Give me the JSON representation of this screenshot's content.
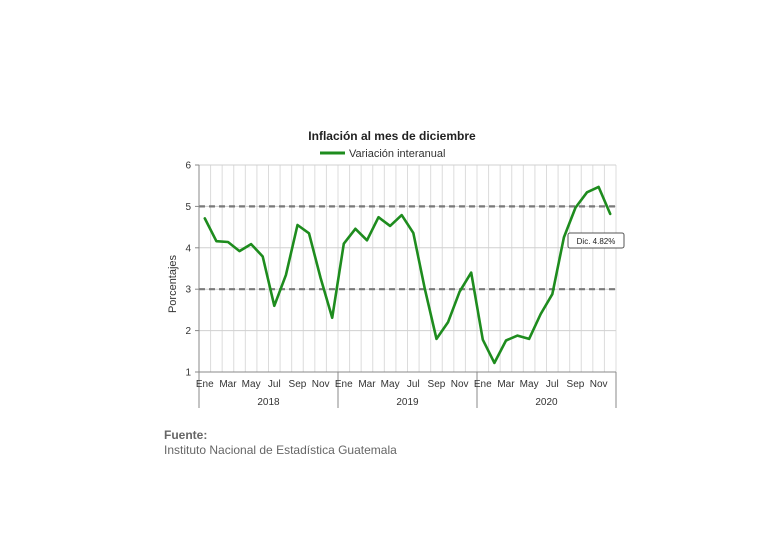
{
  "chart_data": {
    "type": "line",
    "title": "Inflación al mes de diciembre",
    "ylabel": "Porcentajes",
    "ylim": [
      1,
      6
    ],
    "yticks": [
      1,
      2,
      3,
      4,
      5,
      6
    ],
    "month_labels": [
      "Ene",
      "Mar",
      "May",
      "Jul",
      "Sep",
      "Nov"
    ],
    "years": [
      "2018",
      "2019",
      "2020"
    ],
    "reference_lines": [
      5,
      3
    ],
    "legend_position": "top",
    "series": [
      {
        "name": "Variación interanual",
        "color": "#1e8c1e",
        "values": [
          4.71,
          4.16,
          4.14,
          3.92,
          4.09,
          3.79,
          2.6,
          3.34,
          4.55,
          4.35,
          3.27,
          2.31,
          4.1,
          4.46,
          4.18,
          4.74,
          4.53,
          4.79,
          4.36,
          3.0,
          1.8,
          2.2,
          2.94,
          3.4,
          1.78,
          1.22,
          1.76,
          1.88,
          1.8,
          2.4,
          2.88,
          4.25,
          4.97,
          5.34,
          5.47,
          4.82
        ]
      }
    ],
    "annotation": "Dic. 4.82%"
  },
  "source": {
    "label": "Fuente:",
    "text": "Instituto Nacional de Estadística Guatemala"
  }
}
